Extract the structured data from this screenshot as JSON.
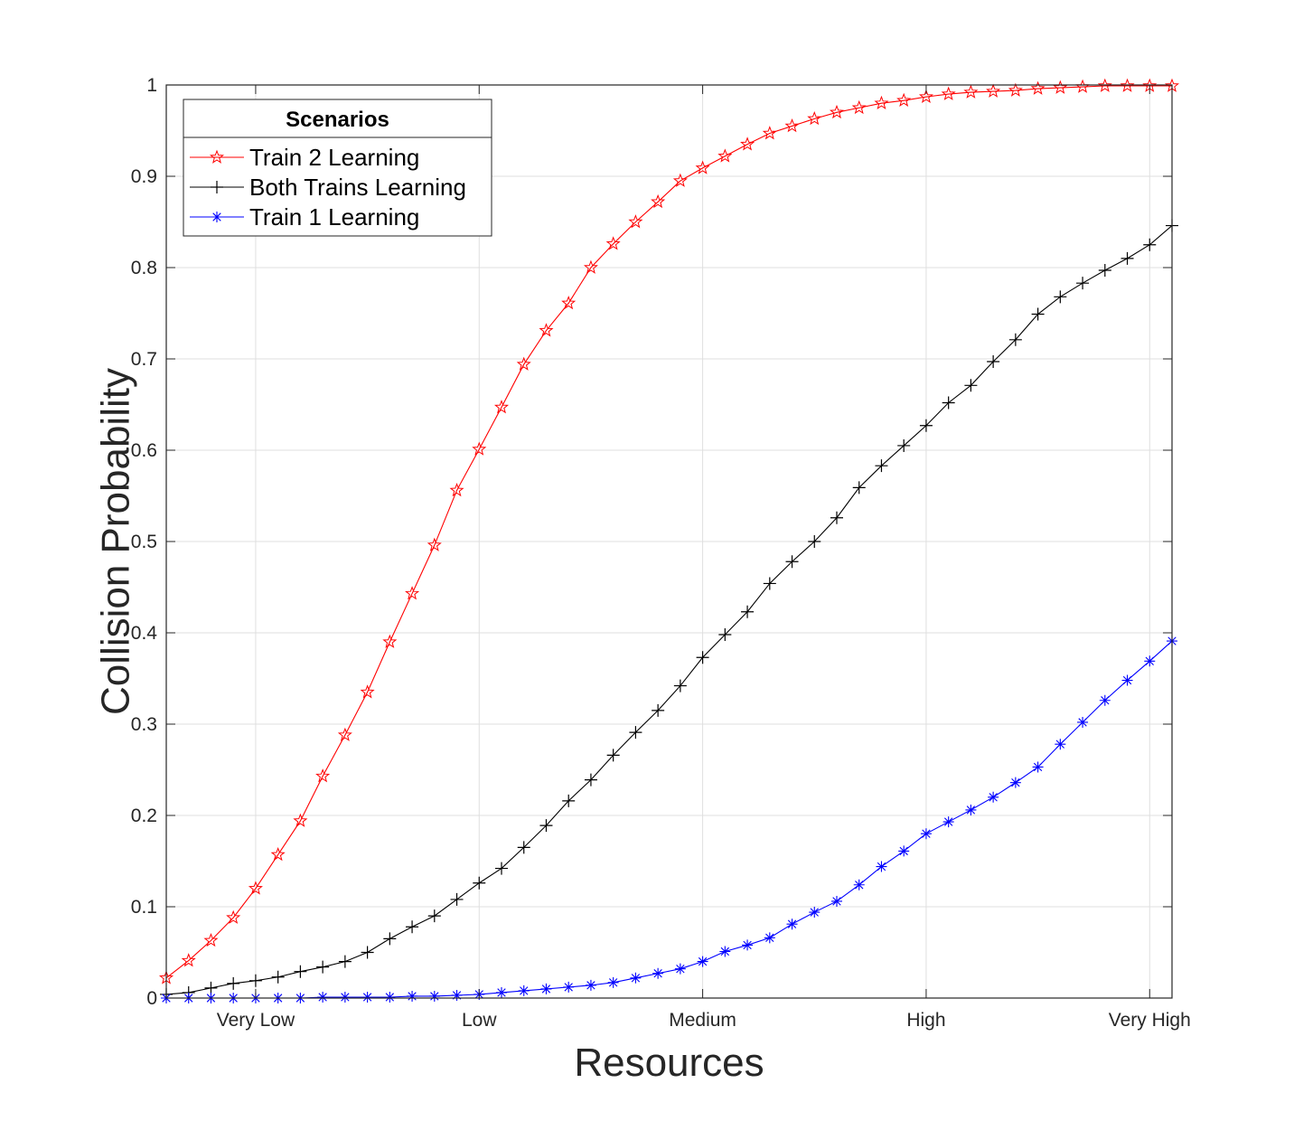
{
  "chart_data": {
    "type": "line",
    "xlabel": "Resources",
    "ylabel": "Collision Probability",
    "x_tick_labels": [
      "Very Low",
      "Low",
      "Medium",
      "High",
      "Very High"
    ],
    "x_tick_positions": [
      5,
      15,
      25,
      35,
      45
    ],
    "xlim": [
      1,
      46
    ],
    "ylim": [
      0,
      1
    ],
    "y_ticks": [
      0,
      0.1,
      0.2,
      0.3,
      0.4,
      0.5,
      0.6,
      0.7,
      0.8,
      0.9,
      1
    ],
    "y_tick_labels": [
      "0",
      "0.1",
      "0.2",
      "0.3",
      "0.4",
      "0.5",
      "0.6",
      "0.7",
      "0.8",
      "0.9",
      "1"
    ],
    "grid": true,
    "legend": {
      "title": "Scenarios",
      "placement": "top-left"
    },
    "x": [
      1,
      2,
      3,
      4,
      5,
      6,
      7,
      8,
      9,
      10,
      11,
      12,
      13,
      14,
      15,
      16,
      17,
      18,
      19,
      20,
      21,
      22,
      23,
      24,
      25,
      26,
      27,
      28,
      29,
      30,
      31,
      32,
      33,
      34,
      35,
      36,
      37,
      38,
      39,
      40,
      41,
      42,
      43,
      44,
      45,
      46
    ],
    "series": [
      {
        "name": "Train 2 Learning",
        "color": "#ff0000",
        "marker": "star",
        "values": [
          0.022,
          0.041,
          0.063,
          0.088,
          0.12,
          0.157,
          0.194,
          0.243,
          0.288,
          0.335,
          0.39,
          0.443,
          0.496,
          0.556,
          0.601,
          0.647,
          0.694,
          0.731,
          0.761,
          0.8,
          0.826,
          0.85,
          0.872,
          0.895,
          0.909,
          0.922,
          0.935,
          0.947,
          0.955,
          0.963,
          0.97,
          0.975,
          0.98,
          0.983,
          0.987,
          0.99,
          0.992,
          0.993,
          0.994,
          0.996,
          0.997,
          0.998,
          0.999,
          0.999,
          0.999,
          0.999
        ]
      },
      {
        "name": "Both Trains Learning",
        "color": "#000000",
        "marker": "plus",
        "values": [
          0.004,
          0.006,
          0.011,
          0.016,
          0.019,
          0.023,
          0.029,
          0.034,
          0.04,
          0.05,
          0.065,
          0.078,
          0.09,
          0.108,
          0.126,
          0.142,
          0.165,
          0.189,
          0.216,
          0.239,
          0.266,
          0.291,
          0.315,
          0.342,
          0.373,
          0.398,
          0.423,
          0.454,
          0.478,
          0.5,
          0.526,
          0.559,
          0.583,
          0.605,
          0.627,
          0.652,
          0.671,
          0.697,
          0.721,
          0.749,
          0.768,
          0.783,
          0.797,
          0.81,
          0.825,
          0.846
        ]
      },
      {
        "name": "Train 1 Learning",
        "color": "#0000ff",
        "marker": "asterisk",
        "values": [
          0.0,
          0.0,
          0.0,
          0.0,
          0.0,
          0.0,
          0.0,
          0.001,
          0.001,
          0.001,
          0.001,
          0.002,
          0.002,
          0.003,
          0.004,
          0.006,
          0.008,
          0.01,
          0.012,
          0.014,
          0.017,
          0.022,
          0.027,
          0.032,
          0.04,
          0.051,
          0.058,
          0.066,
          0.081,
          0.094,
          0.106,
          0.124,
          0.144,
          0.161,
          0.18,
          0.193,
          0.206,
          0.22,
          0.236,
          0.253,
          0.278,
          0.302,
          0.326,
          0.348,
          0.369,
          0.391
        ]
      }
    ]
  }
}
